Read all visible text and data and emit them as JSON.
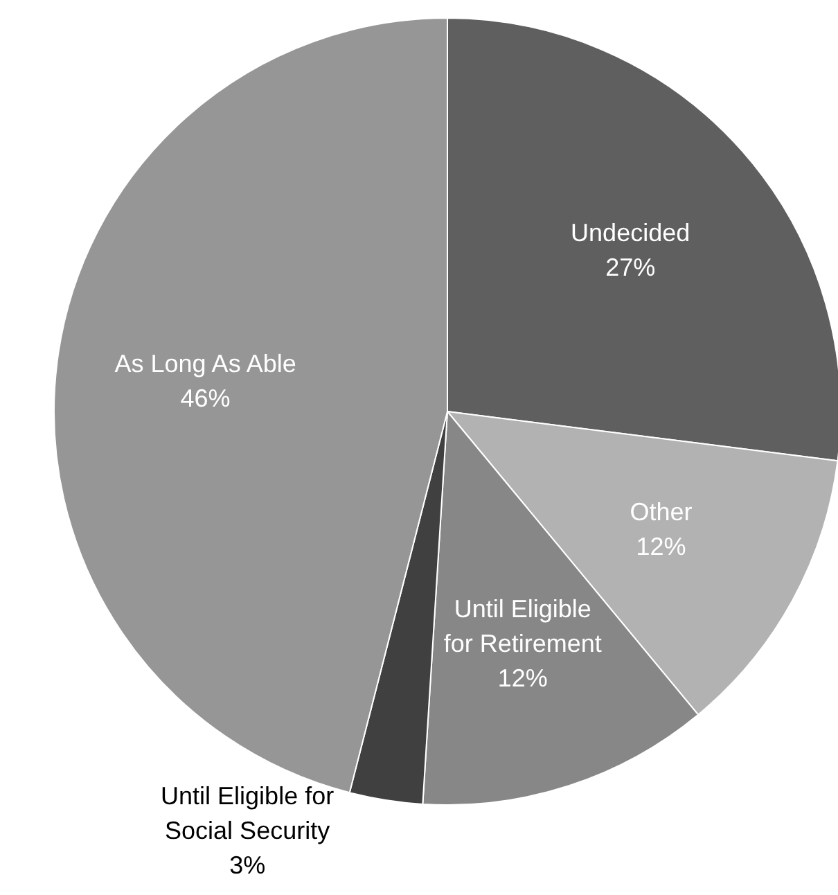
{
  "chart_data": {
    "type": "pie",
    "categories": [
      "Undecided",
      "Other",
      "Until Eligible for Retirement",
      "Until Eligible for Social Security",
      "As Long As Able"
    ],
    "values": [
      27,
      12,
      12,
      3,
      46
    ],
    "colors": [
      "#5f5f5f",
      "#b2b2b2",
      "#878787",
      "#404040",
      "#969696"
    ],
    "value_labels": [
      "27%",
      "12%",
      "12%",
      "3%",
      "46%"
    ]
  }
}
